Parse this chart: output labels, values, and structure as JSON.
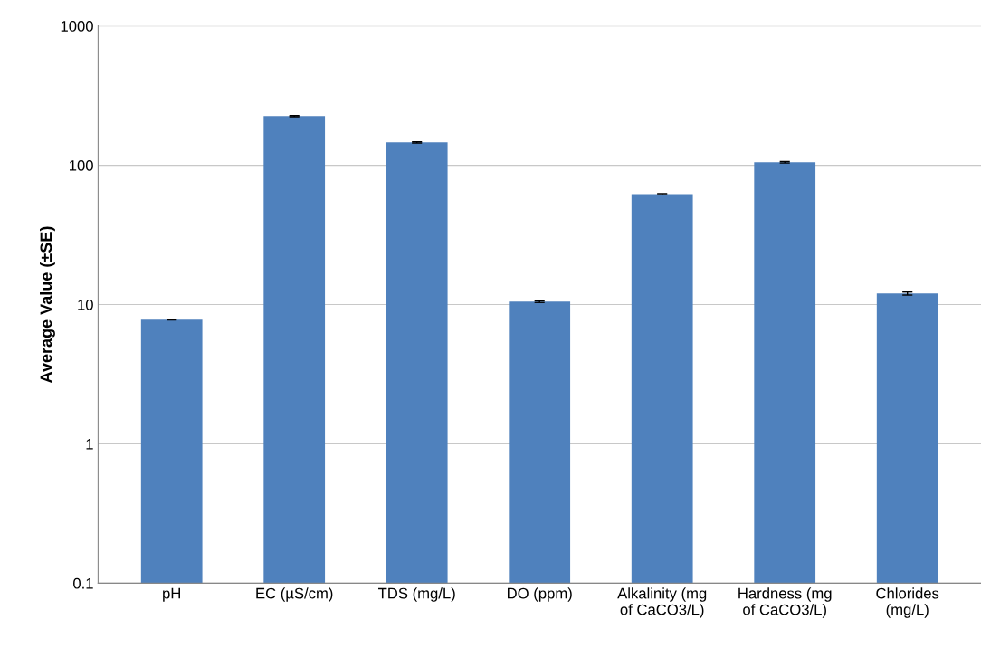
{
  "chart_data": {
    "type": "bar",
    "ylabel": "Average Value (±SE)",
    "categories": [
      "pH",
      "EC (µS/cm)",
      "TDS (mg/L)",
      "DO (ppm)",
      "Alkalinity (mg\nof CaCO3/L)",
      "Hardness (mg\nof CaCO3/L)",
      "Chlorides\n(mg/L)"
    ],
    "values": [
      7.8,
      225,
      146,
      10.5,
      62,
      105,
      12
    ],
    "errors": [
      0.05,
      2,
      1.5,
      0.15,
      0.6,
      1.2,
      0.3
    ],
    "color": "#4f81bd",
    "log": true,
    "ylim": [
      0.1,
      1000
    ],
    "yticks": [
      0.1,
      1,
      10,
      100,
      1000
    ],
    "grid": "y"
  }
}
